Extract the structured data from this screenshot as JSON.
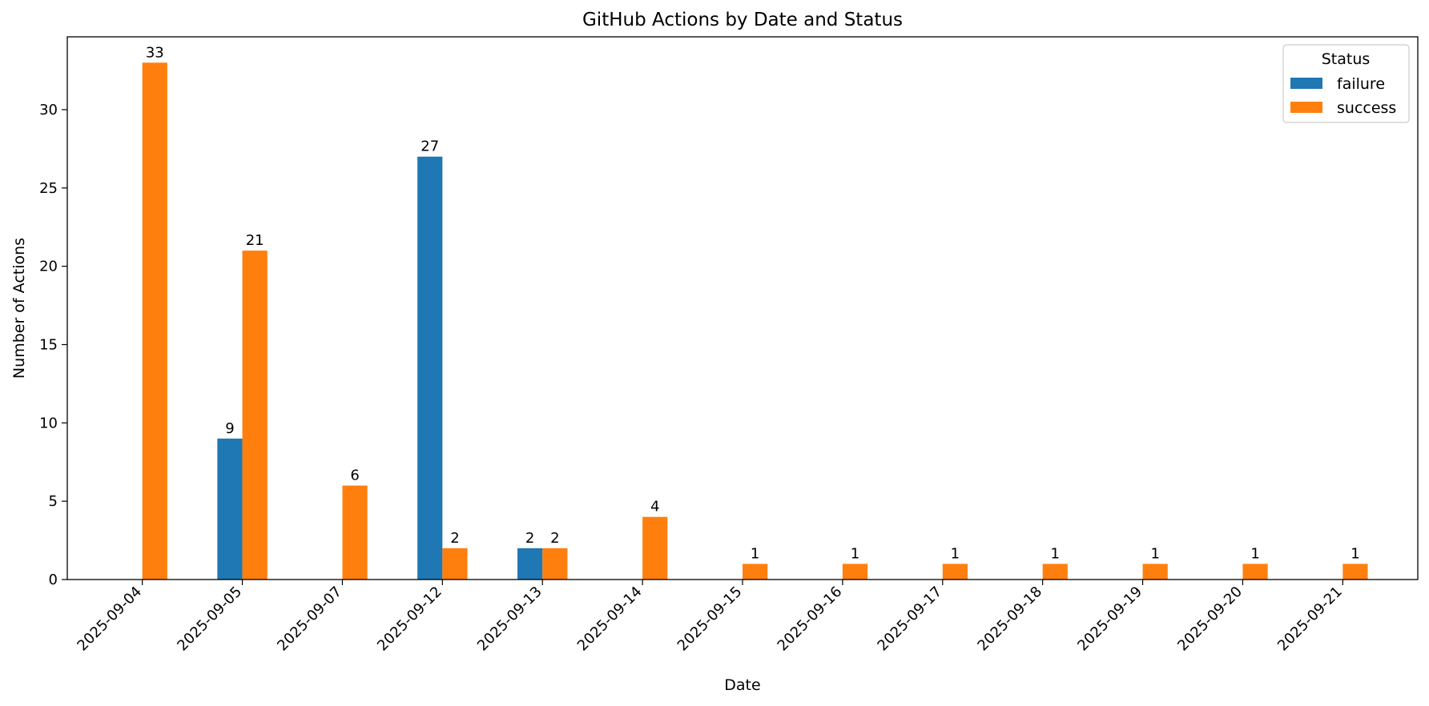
{
  "chart_data": {
    "type": "bar",
    "title": "GitHub Actions by Date and Status",
    "xlabel": "Date",
    "ylabel": "Number of Actions",
    "categories": [
      "2025-09-04",
      "2025-09-05",
      "2025-09-07",
      "2025-09-12",
      "2025-09-13",
      "2025-09-14",
      "2025-09-15",
      "2025-09-16",
      "2025-09-17",
      "2025-09-18",
      "2025-09-19",
      "2025-09-20",
      "2025-09-21"
    ],
    "series": [
      {
        "name": "failure",
        "color": "#1f77b4",
        "values": [
          0,
          9,
          0,
          27,
          2,
          0,
          0,
          0,
          0,
          0,
          0,
          0,
          0
        ]
      },
      {
        "name": "success",
        "color": "#ff7f0e",
        "values": [
          33,
          21,
          6,
          2,
          2,
          4,
          1,
          1,
          1,
          1,
          1,
          1,
          1
        ]
      }
    ],
    "ylim": [
      0,
      34.65
    ],
    "yticks": [
      0,
      5,
      10,
      15,
      20,
      25,
      30
    ],
    "legend": {
      "title": "Status",
      "position": "top-right"
    },
    "grid": false
  }
}
